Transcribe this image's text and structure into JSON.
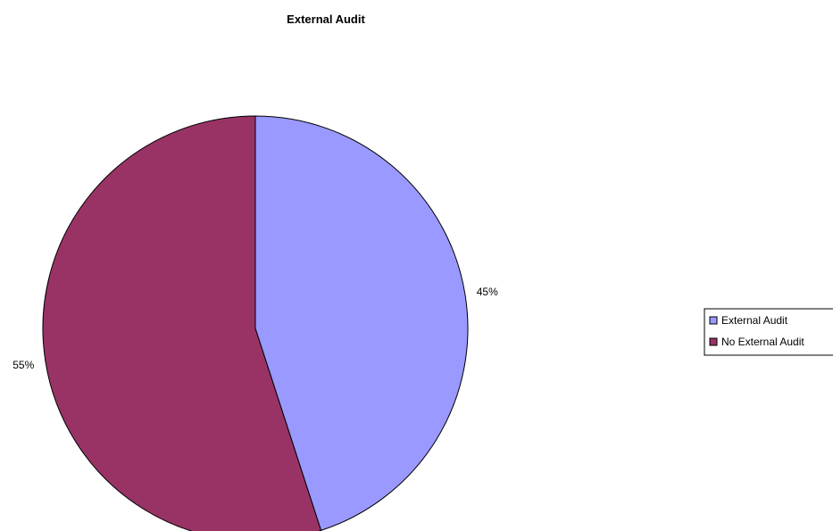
{
  "chart_data": {
    "type": "pie",
    "title": "External Audit",
    "categories": [
      "External Audit",
      "No External Audit"
    ],
    "values": [
      45,
      55
    ],
    "data_labels": [
      "45%",
      "55%"
    ],
    "colors": [
      "#9999FF",
      "#993366"
    ],
    "legend": {
      "placement": "right",
      "entries": [
        "External Audit",
        "No External Audit"
      ]
    },
    "start_angle_deg": 0,
    "direction": "clockwise"
  }
}
